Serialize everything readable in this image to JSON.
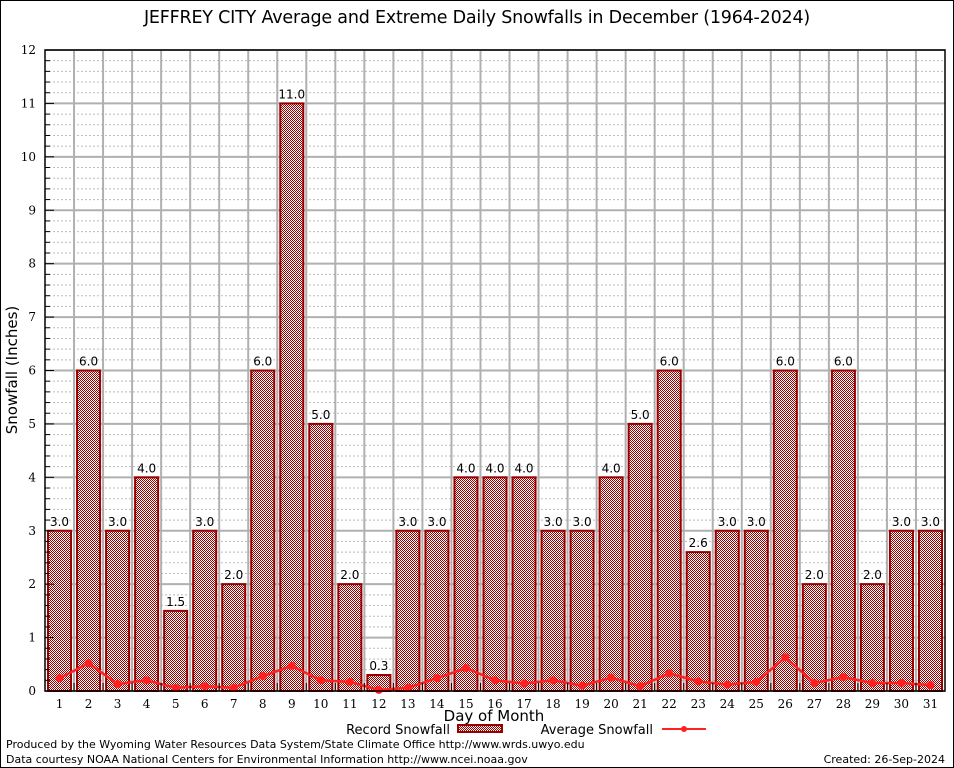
{
  "chart_data": {
    "type": "bar",
    "title": "JEFFREY CITY Average and Extreme Daily Snowfalls in December (1964-2024)",
    "xlabel": "Day of Month",
    "ylabel": "Snowfall (Inches)",
    "ylim": [
      0,
      12
    ],
    "yticks": [
      "0",
      "1",
      "2",
      "3",
      "4",
      "5",
      "6",
      "7",
      "8",
      "9",
      "10",
      "11",
      "12"
    ],
    "grid": true,
    "categories": [
      "1",
      "2",
      "3",
      "4",
      "5",
      "6",
      "7",
      "8",
      "9",
      "10",
      "11",
      "12",
      "13",
      "14",
      "15",
      "16",
      "17",
      "18",
      "19",
      "20",
      "21",
      "22",
      "23",
      "24",
      "25",
      "26",
      "27",
      "28",
      "29",
      "30",
      "31"
    ],
    "series": [
      {
        "name": "Record Snowfall",
        "kind": "bar",
        "color": "#990000",
        "values": [
          3.0,
          6.0,
          3.0,
          4.0,
          1.5,
          3.0,
          2.0,
          6.0,
          11.0,
          5.0,
          2.0,
          0.3,
          3.0,
          3.0,
          4.0,
          4.0,
          4.0,
          3.0,
          3.0,
          4.0,
          5.0,
          6.0,
          2.6,
          3.0,
          3.0,
          6.0,
          2.0,
          6.0,
          2.0,
          3.0,
          3.0
        ],
        "labels": [
          "3.0",
          "6.0",
          "3.0",
          "4.0",
          "1.5",
          "3.0",
          "2.0",
          "6.0",
          "11.0",
          "5.0",
          "2.0",
          "0.3",
          "3.0",
          "3.0",
          "4.0",
          "4.0",
          "4.0",
          "3.0",
          "3.0",
          "4.0",
          "5.0",
          "6.0",
          "2.6",
          "3.0",
          "3.0",
          "6.0",
          "2.0",
          "6.0",
          "2.0",
          "3.0",
          "3.0"
        ]
      },
      {
        "name": "Average Snowfall",
        "kind": "line",
        "color": "#ff2020",
        "values": [
          0.24,
          0.52,
          0.13,
          0.2,
          0.06,
          0.09,
          0.06,
          0.28,
          0.47,
          0.2,
          0.17,
          0.02,
          0.06,
          0.24,
          0.43,
          0.2,
          0.14,
          0.2,
          0.1,
          0.25,
          0.09,
          0.33,
          0.18,
          0.12,
          0.17,
          0.63,
          0.15,
          0.26,
          0.15,
          0.15,
          0.11
        ]
      }
    ],
    "legend": {
      "placement": "bottom-center",
      "entries": [
        "Record Snowfall",
        "Average Snowfall"
      ]
    }
  },
  "footer": {
    "line1": "Produced by the Wyoming Water Resources Data System/State Climate Office http://www.wrds.uwyo.edu",
    "line2": "Data courtesy NOAA National Centers for Environmental Information http://www.ncei.noaa.gov",
    "created": "Created: 26-Sep-2024"
  }
}
